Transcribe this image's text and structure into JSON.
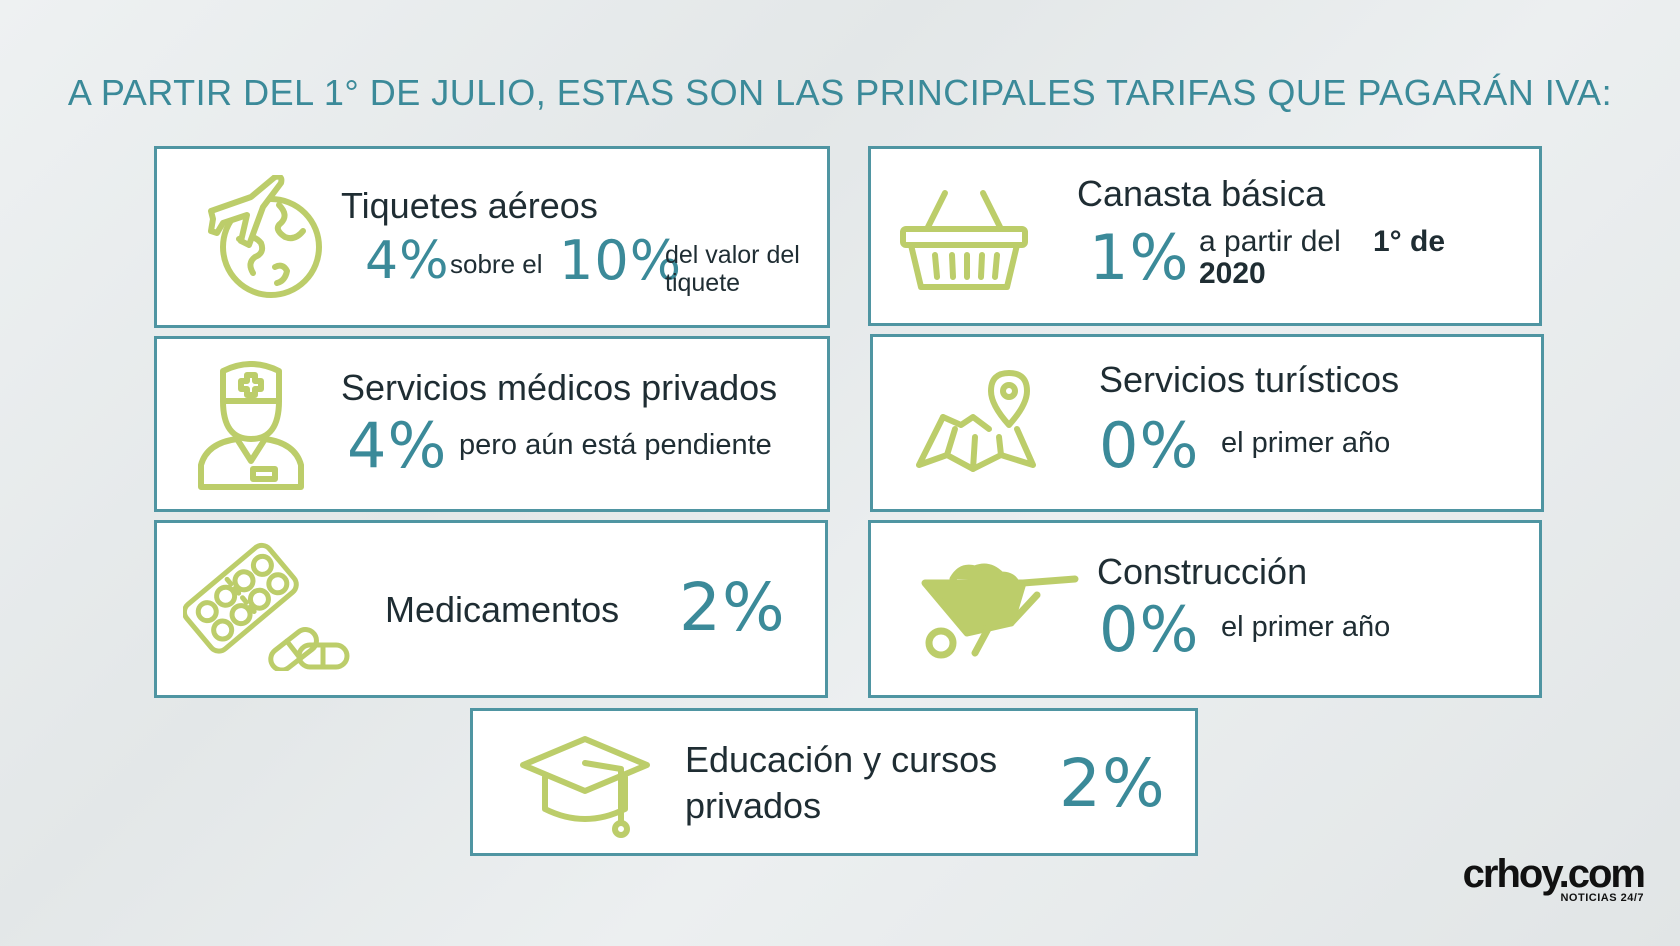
{
  "title": "A PARTIR DEL 1° DE JULIO, ESTAS SON LAS PRINCIPALES TARIFAS QUE PAGARÁN IVA:",
  "colors": {
    "accent": "#3b8a99",
    "icon": "#bccd6a",
    "border": "#4f95a2",
    "text": "#1f2d33"
  },
  "cards": {
    "tiquetes": {
      "icon": "plane-globe-icon",
      "heading": "Tiquetes aéreos",
      "rate": "4%",
      "mid": "sobre el",
      "rate2": "10%",
      "note_line1": "del valor del",
      "note_line2": "tiquete"
    },
    "canasta": {
      "icon": "basket-icon",
      "heading": "Canasta básica",
      "rate": "1%",
      "note_line1": "a partir del",
      "note_bold1": "1° de",
      "note_bold2": "2020"
    },
    "medicos": {
      "icon": "doctor-icon",
      "heading": "Servicios médicos privados",
      "rate": "4%",
      "note": "pero aún está pendiente"
    },
    "turisticos": {
      "icon": "map-pin-icon",
      "heading": "Servicios turísticos",
      "rate": "0%",
      "note": "el primer año"
    },
    "medicamentos": {
      "icon": "pills-icon",
      "heading": "Medicamentos",
      "rate": "2%"
    },
    "construccion": {
      "icon": "wheelbarrow-icon",
      "heading": "Construcción",
      "rate": "0%",
      "note": "el primer año"
    },
    "educacion": {
      "icon": "graduation-cap-icon",
      "heading_line1": "Educación y cursos",
      "heading_line2": "privados",
      "rate": "2%"
    }
  },
  "logo": {
    "main": "crhoy.com",
    "sub": "NOTICIAS 24/7"
  }
}
